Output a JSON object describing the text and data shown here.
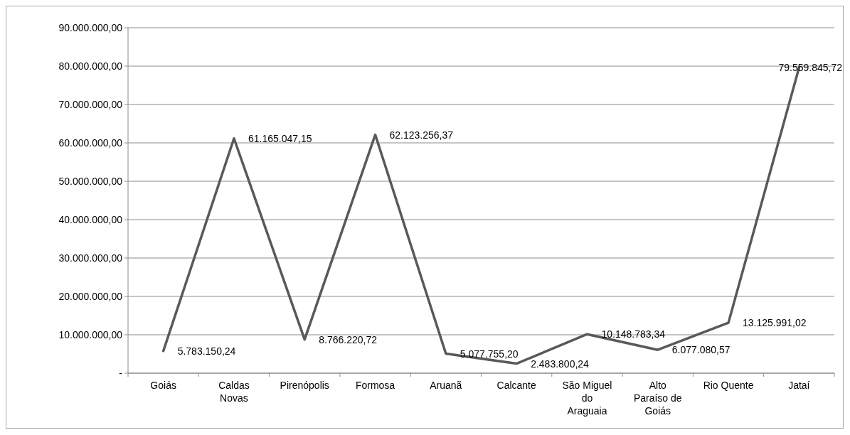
{
  "chart_data": {
    "type": "line",
    "categories": [
      "Goiás",
      "Caldas Novas",
      "Pirenópolis",
      "Formosa",
      "Aruanã",
      "Calcante",
      "São Miguel do Araguaia",
      "Alto Paraíso de Goiás",
      "Rio Quente",
      "Jataí"
    ],
    "series": [
      {
        "color": "#595959",
        "values": [
          5783150.24,
          61165047.15,
          8766220.72,
          62123256.37,
          5077755.2,
          2483800.24,
          10148783.34,
          6077080.57,
          13125991.02,
          79559845.72
        ],
        "value_labels": [
          "5.783.150,24",
          "61.165.047,15",
          "8.766.220,72",
          "62.123.256,37",
          "5.077.755,20",
          "2.483.800,24",
          "10.148.783,34",
          "6.077.080,57",
          "13.125.991,02",
          "79.559.845,72"
        ]
      }
    ],
    "ylim": [
      0,
      90000000
    ],
    "yticks": [
      {
        "value": 0,
        "label": "-"
      },
      {
        "value": 10000000,
        "label": "10.000.000,00"
      },
      {
        "value": 20000000,
        "label": "20.000.000,00"
      },
      {
        "value": 30000000,
        "label": "30.000.000,00"
      },
      {
        "value": 40000000,
        "label": "40.000.000,00"
      },
      {
        "value": 50000000,
        "label": "50.000.000,00"
      },
      {
        "value": 60000000,
        "label": "60.000.000,00"
      },
      {
        "value": 70000000,
        "label": "70.000.000,00"
      },
      {
        "value": 80000000,
        "label": "80.000.000,00"
      },
      {
        "value": 90000000,
        "label": "90.000.000,00"
      }
    ],
    "grid": "y",
    "marker": "none",
    "line_style": "solid"
  }
}
